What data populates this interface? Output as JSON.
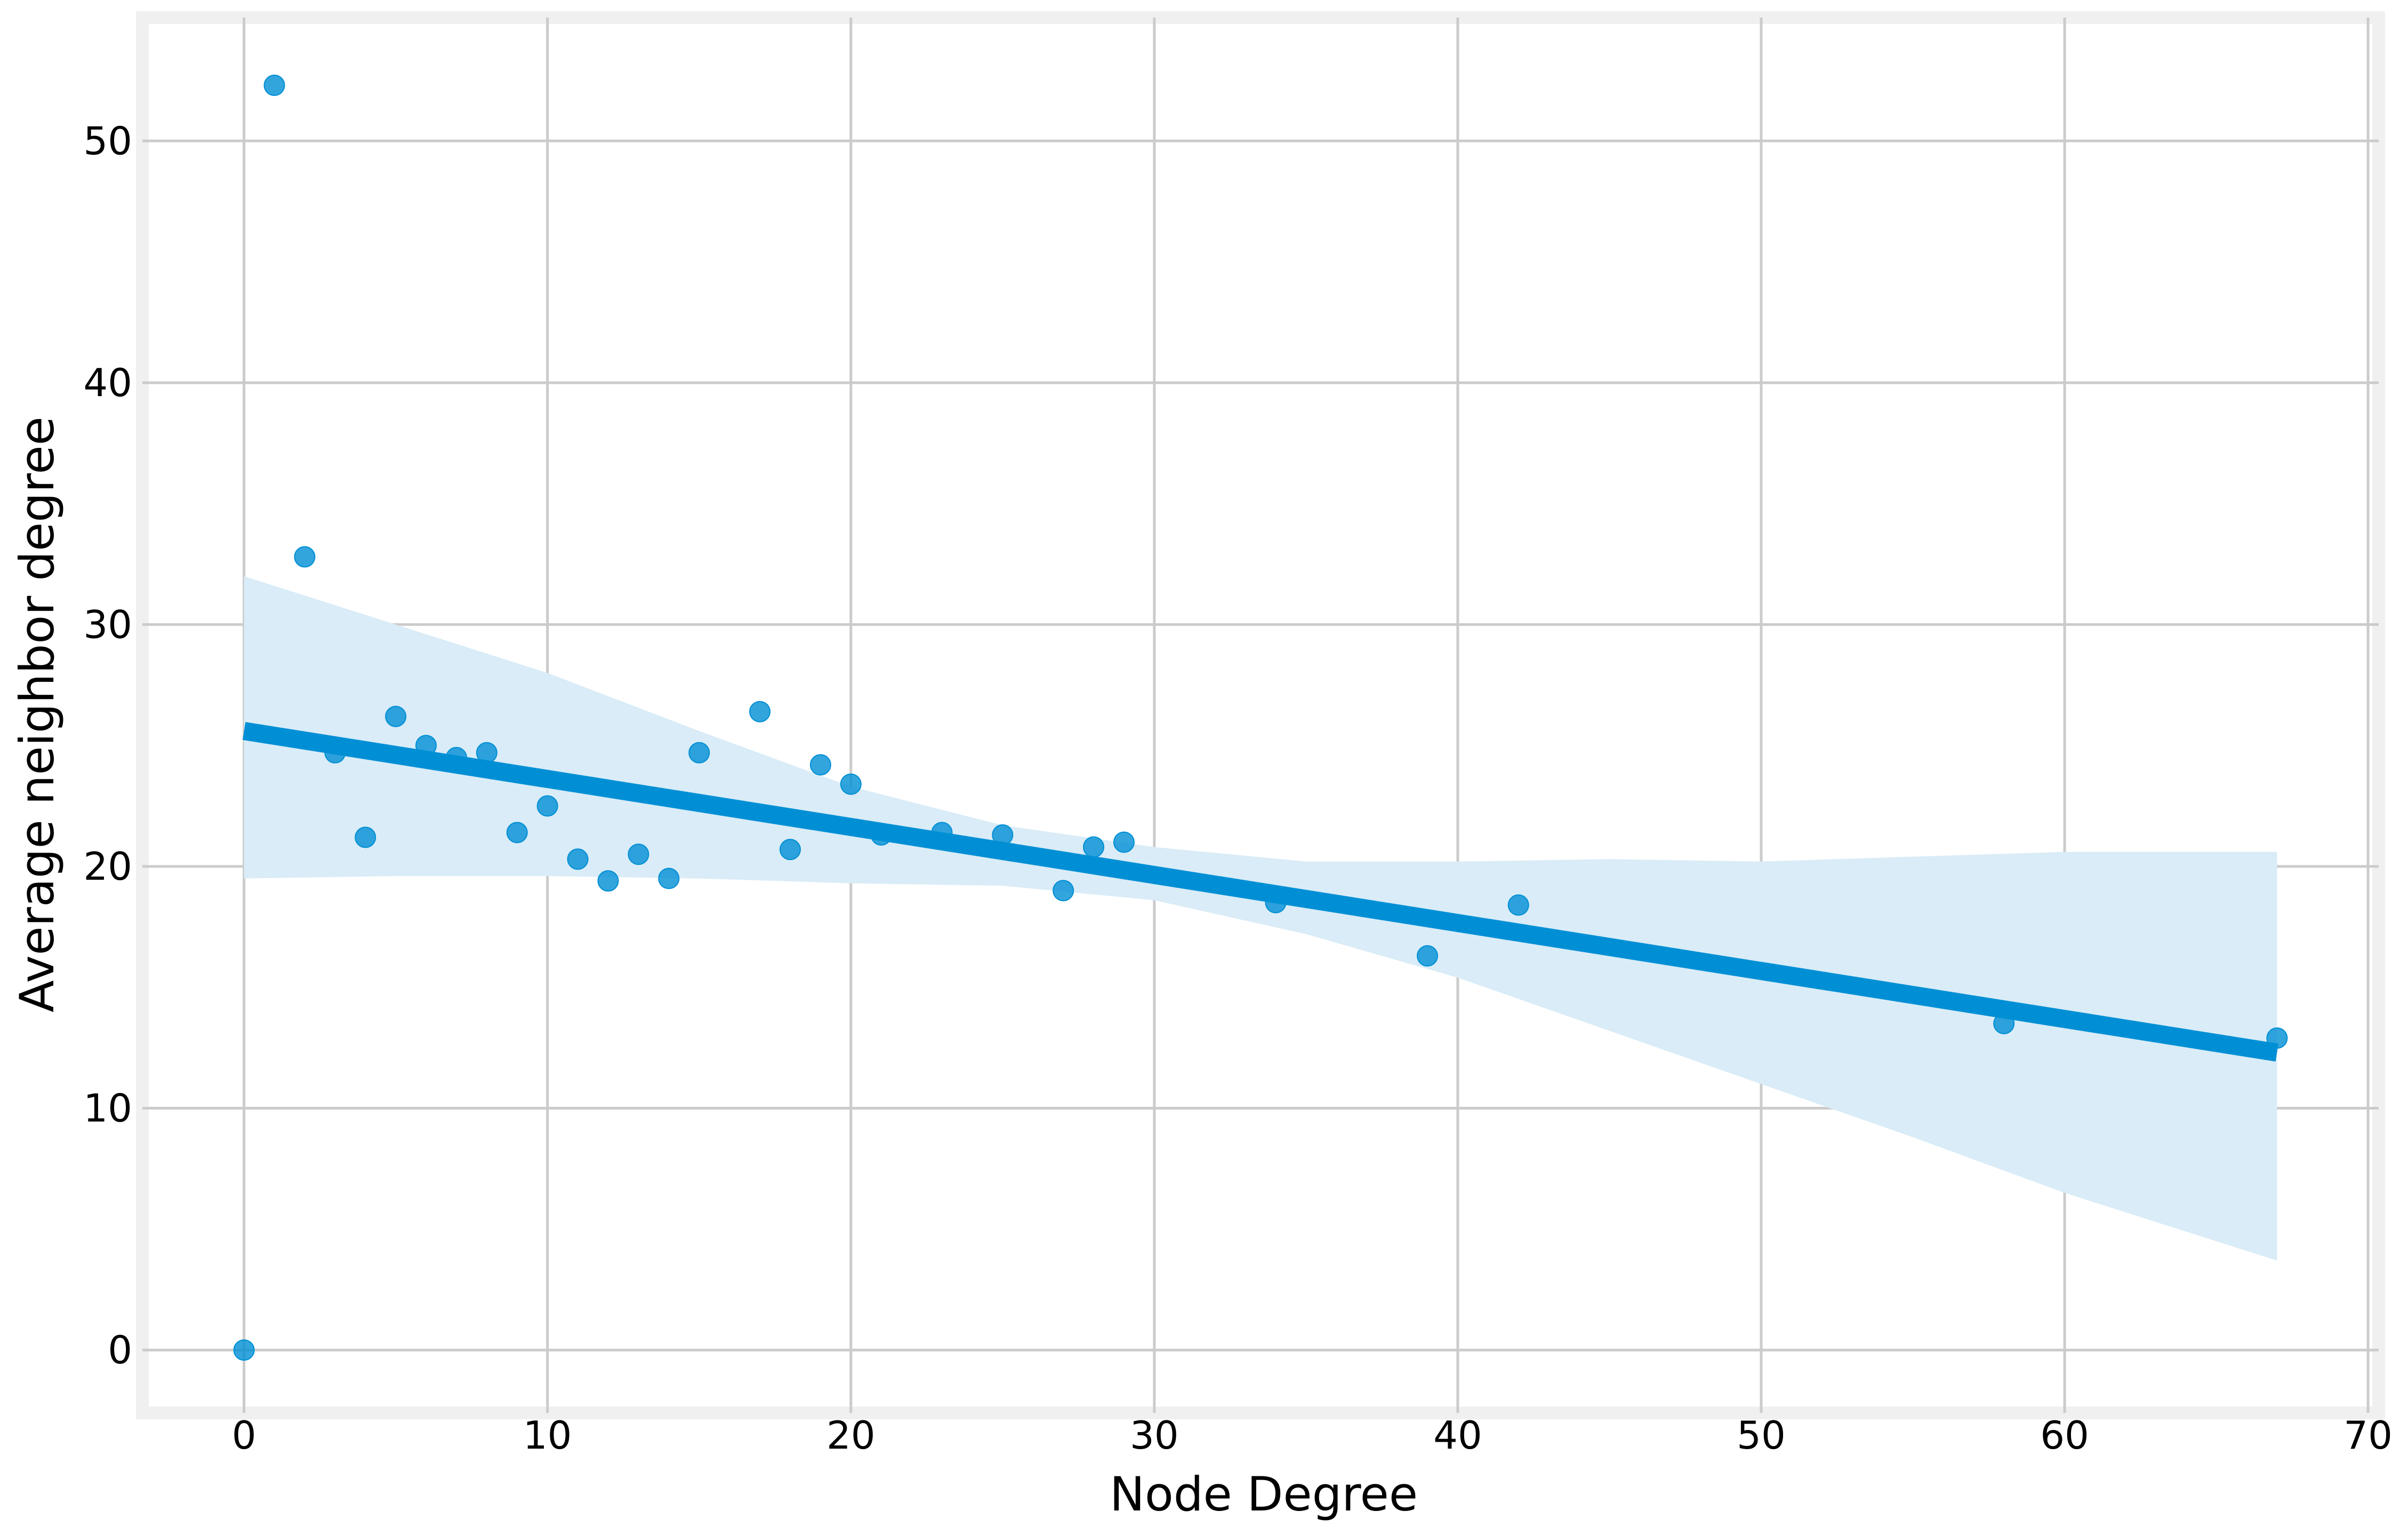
{
  "chart_data": {
    "type": "scatter",
    "title": "",
    "xlabel": "Node Degree",
    "ylabel": "Average neighbor degree",
    "xlim": [
      -3.35,
      70.35
    ],
    "ylim": [
      -2.6,
      55.1
    ],
    "xticks": [
      0,
      10,
      20,
      30,
      40,
      50,
      60,
      70
    ],
    "yticks": [
      0,
      10,
      20,
      30,
      40,
      50
    ],
    "grid": true,
    "colors": {
      "point": "#008fd5",
      "line": "#008fd5",
      "band": "#d9ecf7",
      "grid": "#cbcbcb",
      "frame": "#f0f0f0"
    },
    "points": [
      {
        "x": 0,
        "y": 0
      },
      {
        "x": 1,
        "y": 52.3
      },
      {
        "x": 2,
        "y": 32.8
      },
      {
        "x": 3,
        "y": 24.7
      },
      {
        "x": 4,
        "y": 21.2
      },
      {
        "x": 5,
        "y": 26.2
      },
      {
        "x": 6,
        "y": 25.0
      },
      {
        "x": 7,
        "y": 24.5
      },
      {
        "x": 8,
        "y": 24.7
      },
      {
        "x": 9,
        "y": 21.4
      },
      {
        "x": 10,
        "y": 22.5
      },
      {
        "x": 11,
        "y": 20.3
      },
      {
        "x": 12,
        "y": 19.4
      },
      {
        "x": 13,
        "y": 20.5
      },
      {
        "x": 14,
        "y": 19.5
      },
      {
        "x": 15,
        "y": 24.7
      },
      {
        "x": 17,
        "y": 26.4
      },
      {
        "x": 18,
        "y": 20.7
      },
      {
        "x": 19,
        "y": 24.2
      },
      {
        "x": 20,
        "y": 23.4
      },
      {
        "x": 21,
        "y": 21.3
      },
      {
        "x": 23,
        "y": 21.4
      },
      {
        "x": 25,
        "y": 21.3
      },
      {
        "x": 27,
        "y": 19.0
      },
      {
        "x": 28,
        "y": 20.8
      },
      {
        "x": 29,
        "y": 21.0
      },
      {
        "x": 34,
        "y": 18.5
      },
      {
        "x": 39,
        "y": 16.3
      },
      {
        "x": 42,
        "y": 18.4
      },
      {
        "x": 58,
        "y": 13.5
      },
      {
        "x": 67,
        "y": 12.9
      }
    ],
    "regression": {
      "x": [
        0,
        67
      ],
      "y": [
        25.6,
        12.3
      ]
    },
    "confidence_band": {
      "x": [
        0,
        5,
        10,
        15,
        20,
        25,
        30,
        35,
        40,
        45,
        50,
        55,
        60,
        67
      ],
      "upper": [
        32.0,
        30.0,
        28.0,
        25.6,
        23.3,
        21.7,
        20.8,
        20.2,
        20.2,
        20.3,
        20.2,
        20.4,
        20.6,
        20.6
      ],
      "lower": [
        19.5,
        19.6,
        19.6,
        19.5,
        19.3,
        19.2,
        18.6,
        17.2,
        15.4,
        13.2,
        11.0,
        8.8,
        6.5,
        3.7
      ]
    }
  }
}
